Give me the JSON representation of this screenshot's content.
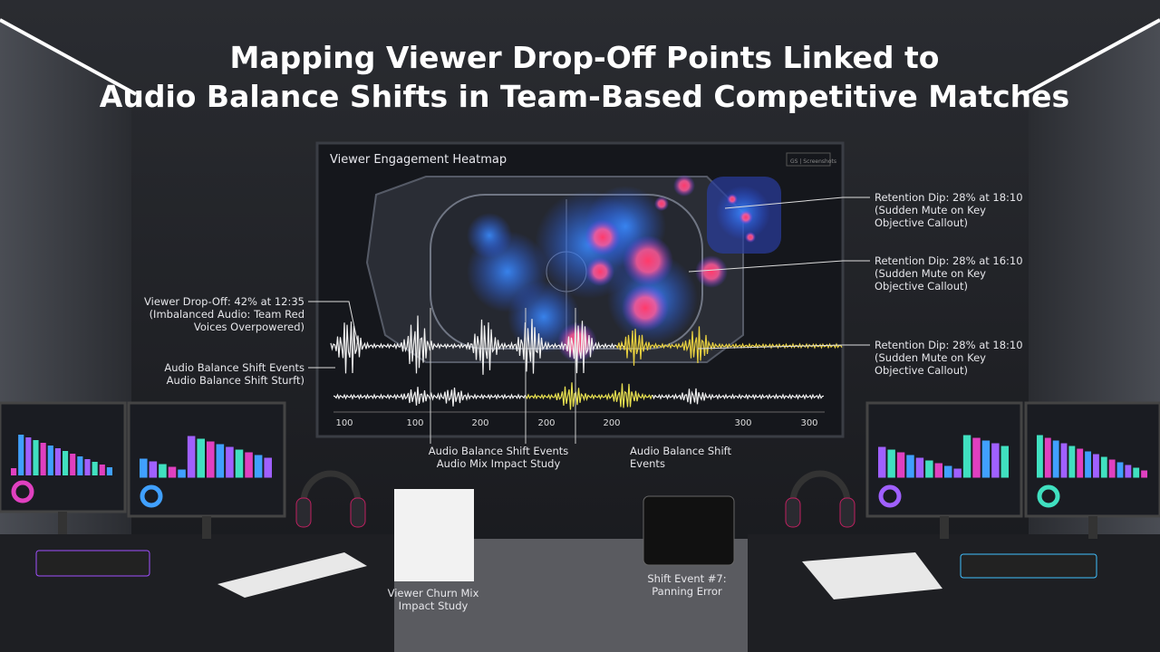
{
  "header": {
    "title_lines": [
      "Mapping Viewer Drop-Off Points Linked to",
      "Audio Balance Shifts in Team-Based Competitive Matches"
    ]
  },
  "screen": {
    "title": "Viewer Engagement Heatmap",
    "badge": "GS | Screenshots",
    "annotations_right": [
      {
        "lines": [
          "Retention Dip: 28% at 18:10",
          "(Sudden Mute on Key",
          "Objective Callout)"
        ]
      },
      {
        "lines": [
          "Retention Dip: 28% at 16:10",
          "(Sudden Mute on Key",
          "Objective Callout)"
        ]
      },
      {
        "lines": [
          "Retention Dip: 28% at 18:10",
          "(Sudden Mute on Key",
          "Objective Callout)"
        ]
      }
    ],
    "annotation_left": {
      "lines": [
        "Viewer Drop-Off: 42% at 12:35",
        "(Imbalanced Audio: Team Red",
        "Voices Overpowered)"
      ]
    },
    "shift_label": {
      "lines": [
        "Audio Balance Shift Events",
        "Audio Balance Shift Sturft)"
      ]
    },
    "axis_labels": [
      "100",
      "100",
      "200",
      "200",
      "200",
      "300",
      "300"
    ],
    "bottom_left": {
      "lines": [
        "Audio Balance Shift Events",
        "Audio Mix Impact Study"
      ]
    },
    "bottom_right": {
      "lines": [
        "Audio Balance Shift",
        "Events"
      ]
    }
  },
  "desk": {
    "report": {
      "lines": [
        "Viewer Churn Mix",
        "Impact Study"
      ]
    },
    "tablet": {
      "lines": [
        "Shift Event #7:",
        "Panning Error"
      ]
    }
  }
}
